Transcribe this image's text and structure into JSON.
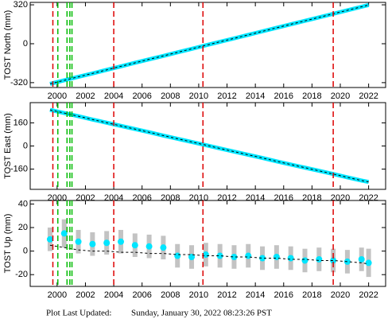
{
  "chart_data": [
    {
      "type": "line",
      "y_label": "TOST North (mm)",
      "x": [
        1999.5,
        2000.5,
        2001.5,
        2002.5,
        2003.5,
        2004.5,
        2005.5,
        2006.5,
        2007.5,
        2008.5,
        2009.5,
        2010.5,
        2011.5,
        2012.5,
        2013.5,
        2014.5,
        2015.5,
        2016.5,
        2017.5,
        2018.5,
        2019.5,
        2020.5,
        2021.5,
        2022.0
      ],
      "series": [
        {
          "color": "#00e5ff",
          "mode": "line",
          "values": [
            -330,
            -301,
            -272,
            -244,
            -215,
            -186,
            -157,
            -128,
            -100,
            -71,
            -42,
            -13,
            16,
            44,
            73,
            102,
            131,
            160,
            188,
            217,
            246,
            275,
            304,
            318
          ]
        },
        {
          "color": "#000000",
          "mode": "dashed",
          "values": [
            -330,
            -301,
            -272,
            -244,
            -215,
            -186,
            -157,
            -128,
            -100,
            -71,
            -42,
            -13,
            16,
            44,
            73,
            102,
            131,
            160,
            188,
            217,
            246,
            275,
            304,
            318
          ]
        }
      ],
      "xlim": [
        1998.1,
        2023.2
      ],
      "xticks": [
        2000,
        2002,
        2004,
        2006,
        2008,
        2010,
        2012,
        2014,
        2016,
        2018,
        2020,
        2022
      ],
      "ylim": [
        -360,
        340
      ],
      "yticks": [
        -320,
        0,
        320
      ],
      "events": [
        {
          "x": 1999.7,
          "color": "#dd0000"
        },
        {
          "x": 2004.0,
          "color": "#dd0000"
        },
        {
          "x": 2010.3,
          "color": "#dd0000"
        },
        {
          "x": 2019.5,
          "color": "#dd0000"
        },
        {
          "x": 2000.05,
          "color": "#00bb00"
        },
        {
          "x": 2000.7,
          "color": "#00bb00"
        },
        {
          "x": 2000.9,
          "color": "#00bb00"
        },
        {
          "x": 2001.05,
          "color": "#00bb00"
        }
      ]
    },
    {
      "type": "line",
      "y_label": "TOST East (mm)",
      "x": [
        1999.5,
        2000.5,
        2001.5,
        2002.5,
        2003.5,
        2004.5,
        2005.5,
        2006.5,
        2007.5,
        2008.5,
        2009.5,
        2010.5,
        2011.5,
        2012.5,
        2013.5,
        2014.5,
        2015.5,
        2016.5,
        2017.5,
        2018.5,
        2019.5,
        2020.5,
        2021.5,
        2022.0
      ],
      "series": [
        {
          "color": "#00e5ff",
          "mode": "line",
          "values": [
            250,
            228,
            206,
            183,
            161,
            139,
            117,
            95,
            72,
            50,
            28,
            6,
            -17,
            -39,
            -61,
            -83,
            -106,
            -128,
            -150,
            -172,
            -194,
            -217,
            -239,
            -249
          ]
        },
        {
          "color": "#000000",
          "mode": "dashed",
          "values": [
            250,
            228,
            206,
            183,
            161,
            139,
            117,
            95,
            72,
            50,
            28,
            6,
            -17,
            -39,
            -61,
            -83,
            -106,
            -128,
            -150,
            -172,
            -194,
            -217,
            -239,
            -249
          ]
        }
      ],
      "xlim": [
        1998.1,
        2023.2
      ],
      "xticks": [
        2000,
        2002,
        2004,
        2006,
        2008,
        2010,
        2012,
        2014,
        2016,
        2018,
        2020,
        2022
      ],
      "ylim": [
        -300,
        300
      ],
      "yticks": [
        -160,
        0,
        160
      ],
      "events": [
        {
          "x": 1999.7,
          "color": "#dd0000"
        },
        {
          "x": 2004.0,
          "color": "#dd0000"
        },
        {
          "x": 2010.3,
          "color": "#dd0000"
        },
        {
          "x": 2019.5,
          "color": "#dd0000"
        },
        {
          "x": 2000.05,
          "color": "#00bb00"
        },
        {
          "x": 2000.7,
          "color": "#00bb00"
        },
        {
          "x": 2000.9,
          "color": "#00bb00"
        },
        {
          "x": 2001.05,
          "color": "#00bb00"
        }
      ]
    },
    {
      "type": "line",
      "y_label": "TOST Up (mm)",
      "x": [
        1999.5,
        2000.5,
        2001.5,
        2002.5,
        2003.5,
        2004.5,
        2005.5,
        2006.5,
        2007.5,
        2008.5,
        2009.5,
        2010.5,
        2011.5,
        2012.5,
        2013.5,
        2014.5,
        2015.5,
        2016.5,
        2017.5,
        2018.5,
        2019.5,
        2020.5,
        2021.5,
        2022.0
      ],
      "series": [
        {
          "color": "#00e5ff",
          "mode": "points",
          "error_color": "#aaaaaa",
          "values": [
            10,
            15,
            8,
            6,
            7,
            8,
            5,
            4,
            3,
            -4,
            -5,
            -3,
            -4,
            -5,
            -4,
            -6,
            -5,
            -6,
            -8,
            -7,
            -8,
            -9,
            -7,
            -10
          ],
          "errors": [
            10,
            12,
            10,
            10,
            10,
            10,
            10,
            10,
            10,
            10,
            10,
            10,
            10,
            10,
            10,
            10,
            10,
            10,
            10,
            10,
            10,
            10,
            10,
            12
          ]
        },
        {
          "color": "#000000",
          "mode": "dashed",
          "values": [
            5,
            3,
            1,
            0,
            0,
            -1,
            -1,
            -2,
            -2,
            -3,
            -3,
            -4,
            -4,
            -5,
            -5,
            -6,
            -6,
            -7,
            -7,
            -8,
            -8,
            -9,
            -10,
            -11
          ]
        }
      ],
      "xlim": [
        1998.1,
        2023.2
      ],
      "xticks": [
        2000,
        2002,
        2004,
        2006,
        2008,
        2010,
        2012,
        2014,
        2016,
        2018,
        2020,
        2022
      ],
      "ylim": [
        -30,
        43
      ],
      "yticks": [
        -20,
        0,
        20,
        40
      ],
      "events": [
        {
          "x": 1999.7,
          "color": "#dd0000"
        },
        {
          "x": 2004.0,
          "color": "#dd0000"
        },
        {
          "x": 2010.3,
          "color": "#dd0000"
        },
        {
          "x": 2019.5,
          "color": "#dd0000"
        },
        {
          "x": 2000.05,
          "color": "#00bb00"
        },
        {
          "x": 2000.7,
          "color": "#00bb00"
        },
        {
          "x": 2000.9,
          "color": "#00bb00"
        },
        {
          "x": 2001.05,
          "color": "#00bb00"
        }
      ]
    }
  ],
  "footer": {
    "label": "Plot Last Updated:",
    "timestamp": "Sunday, January 30, 2022 08:23:26 PST"
  }
}
